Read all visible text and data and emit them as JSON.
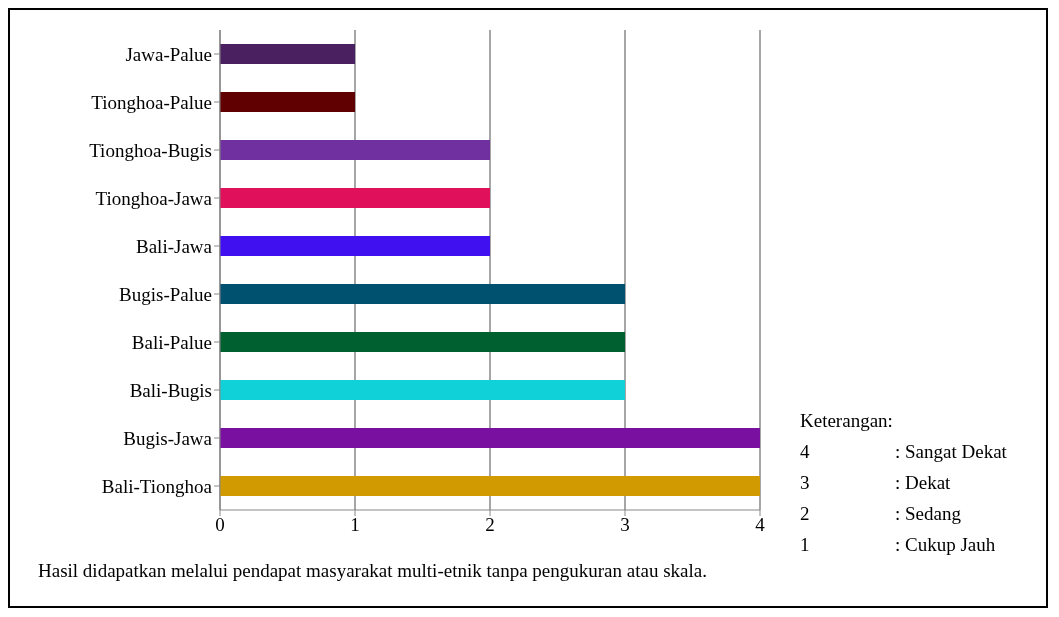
{
  "chart_data": {
    "type": "bar",
    "orientation": "horizontal",
    "categories": [
      "Jawa-Palue",
      "Tionghoa-Palue",
      "Tionghoa-Bugis",
      "Tionghoa-Jawa",
      "Bali-Jawa",
      "Bugis-Palue",
      "Bali-Palue",
      "Bali-Bugis",
      "Bugis-Jawa",
      "Bali-Tionghoa"
    ],
    "values": [
      1,
      1,
      2,
      2,
      2,
      3,
      3,
      3,
      4,
      4
    ],
    "colors": [
      "#4a2060",
      "#600000",
      "#7030a0",
      "#e0105a",
      "#4010f0",
      "#005070",
      "#006030",
      "#10d0d8",
      "#7a10a0",
      "#d09a00"
    ],
    "xlim": [
      0,
      4
    ],
    "xticks": [
      0,
      1,
      2,
      3,
      4
    ],
    "grid": "x",
    "legend": false,
    "annotations": [
      "Keterangan:",
      "4 : Sangat Dekat",
      "3 : Dekat",
      "2 : Sedang",
      "1 : Cukup Jauh",
      "Hasil didapatkan melalui pendapat masyarakat multi-etnik tanpa pengukuran atau skala."
    ]
  }
}
